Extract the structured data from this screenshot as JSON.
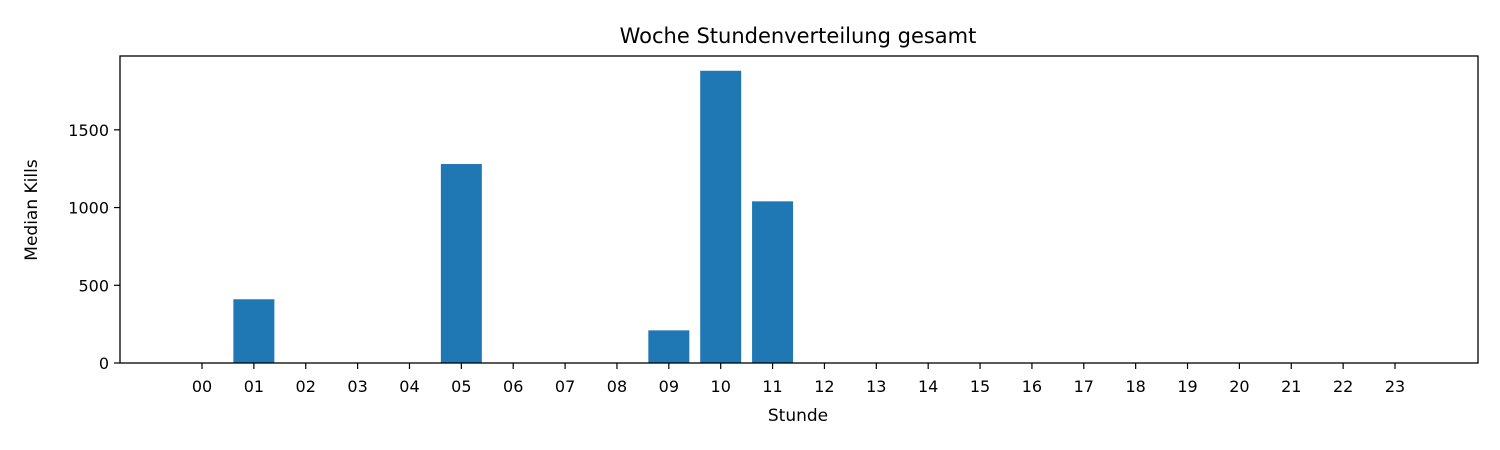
{
  "chart_data": {
    "type": "bar",
    "title": "Woche Stundenverteilung gesamt",
    "xlabel": "Stunde",
    "ylabel": "Median Kills",
    "categories": [
      "00",
      "01",
      "02",
      "03",
      "04",
      "05",
      "06",
      "07",
      "08",
      "09",
      "10",
      "11",
      "12",
      "13",
      "14",
      "15",
      "16",
      "17",
      "18",
      "19",
      "20",
      "21",
      "22",
      "23"
    ],
    "values": [
      0,
      410,
      0,
      0,
      0,
      1280,
      0,
      0,
      0,
      210,
      1880,
      1040,
      0,
      0,
      0,
      0,
      0,
      0,
      0,
      0,
      0,
      0,
      0,
      0
    ],
    "ylim": [
      0,
      1975
    ],
    "yticks": [
      0,
      500,
      1000,
      1500
    ],
    "grid": false,
    "bar_color": "#1f77b4"
  }
}
